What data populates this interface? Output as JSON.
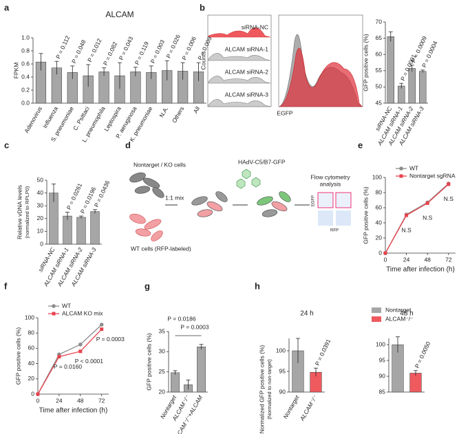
{
  "panels": [
    "a",
    "b",
    "c",
    "d",
    "e",
    "f",
    "g",
    "h"
  ],
  "flow_histogram": {
    "samples": [
      "siRNA-NC",
      "ALCAM siRNA-1",
      "ALCAM siRNA-2",
      "ALCAM siRNA-3"
    ],
    "ylabel": "Counts",
    "xlabel": "EGFP"
  },
  "diagram": {
    "left_top": "Nontarget  / KO cells",
    "left_bottom": "WT cells (RFP-labeled)",
    "mix": "1:1 mix",
    "virus": "HAdV-C5/B7-GFP",
    "analysis": [
      "Flow cytometry",
      "analysis"
    ],
    "plot_y": "EGFP",
    "plot_x": "RFP"
  },
  "chart_data": [
    {
      "type": "bar",
      "title": "ALCAM",
      "ylabel": [
        "FPKM"
      ],
      "categories": [
        "Adenovirus",
        "Influenza",
        "S. pneumoniae",
        "C. Psittaci",
        "L. pneumophila",
        "Leptospira",
        "P. aeruginosa",
        "K. pneumoniae",
        "N.A.",
        "Others",
        "All"
      ],
      "values": [
        0.63,
        0.54,
        0.47,
        0.42,
        0.48,
        0.42,
        0.48,
        0.47,
        0.5,
        0.49,
        0.48
      ],
      "errors": [
        0.13,
        0.1,
        0.1,
        0.17,
        0.06,
        0.2,
        0.07,
        0.1,
        0.15,
        0.13,
        0.14
      ],
      "color": "#a6a6a6",
      "ylim": [
        0,
        1.0
      ],
      "yticks": [
        {
          "value": 0,
          "label": "0.0"
        },
        0.2,
        0.4,
        0.6,
        0.8,
        {
          "value": 1,
          "label": "1.0"
        }
      ],
      "annotations": [
        {
          "text": "P = 0.112",
          "category": 1
        },
        {
          "text": "P = 0.048",
          "category": 2
        },
        {
          "text": "P = 0.012",
          "category": 3
        },
        {
          "text": "P = 0.082",
          "category": 4
        },
        {
          "text": "P = 0.043",
          "category": 5
        },
        {
          "text": "P = 0.119",
          "category": 6
        },
        {
          "text": "P = 0.003",
          "category": 7
        },
        {
          "text": "P = 0.026",
          "category": 8
        },
        {
          "text": "P = 0.006",
          "category": 9
        },
        {
          "text": "P = 0.009",
          "category": 10
        }
      ]
    },
    {
      "type": "bar",
      "ylabel": [
        "GFP positive cells (%)"
      ],
      "categories": [
        "siRNA-NC",
        "ALCAM siRNA-1",
        "ALCAM siRNA-2",
        "ALCAM siRNA-3"
      ],
      "values": [
        65.5,
        50.3,
        55.7,
        54.8
      ],
      "errors": [
        1.5,
        0.8,
        1.0,
        0.4
      ],
      "color": "#a6a6a6",
      "ylim": [
        45,
        70
      ],
      "yticks": [
        45,
        50,
        55,
        60,
        65,
        70
      ],
      "annotations": [
        {
          "text": "P = 0.0001",
          "category": 1
        },
        {
          "text": "P = 0.0009",
          "category": 2
        },
        {
          "text": "P = 0.0004",
          "category": 3
        }
      ]
    },
    {
      "type": "bar",
      "ylabel": [
        "Relative vDNA levels",
        "(normalized to RPLP0)"
      ],
      "categories": [
        "siRNA-NC",
        "ALCAM siRNA-1",
        "ALCAM siRNA-2",
        "ALCAM siRNA-3"
      ],
      "values": [
        40,
        22,
        21,
        25.5
      ],
      "errors": [
        7,
        3,
        1,
        1.5
      ],
      "color": "#a6a6a6",
      "ylim": [
        0,
        50
      ],
      "yticks": [
        0,
        10,
        20,
        30,
        40,
        50
      ],
      "annotations": [
        {
          "text": "P = 0.0261",
          "category": 1
        },
        {
          "text": "P = 0.0196",
          "category": 2
        },
        {
          "text": "P = 0.0436",
          "category": 3
        }
      ]
    },
    {
      "type": "line",
      "ylabel": [
        "GFP positive cells (%)"
      ],
      "xlabel": "Time after infection (h)",
      "x": [
        0,
        24,
        48,
        72
      ],
      "xlim": [
        0,
        80
      ],
      "xticks": [
        0,
        24,
        48,
        72
      ],
      "ylim": [
        0,
        100
      ],
      "yticks": [
        0,
        20,
        40,
        60,
        80,
        100
      ],
      "series": [
        {
          "name": "WT",
          "color": "#8c8c8c",
          "marker": "circle",
          "values": [
            0,
            51,
            67,
            92
          ]
        },
        {
          "name": "Nontarget sgRNA",
          "color": "#e8424d",
          "marker": "square",
          "values": [
            0,
            50,
            66,
            91
          ]
        }
      ],
      "annotations": [
        {
          "text": "N.S",
          "x": 24
        },
        {
          "text": "N.S",
          "x": 48
        },
        {
          "text": "N.S",
          "x": 72
        }
      ]
    },
    {
      "type": "line",
      "ylabel": [
        "GFP positive cells (%)"
      ],
      "xlabel": "Time after infection (h)",
      "x": [
        0,
        24,
        48,
        72
      ],
      "xlim": [
        0,
        80
      ],
      "xticks": [
        0,
        24,
        48,
        72
      ],
      "ylim": [
        0,
        100
      ],
      "yticks": [
        0,
        20,
        40,
        60,
        80,
        100
      ],
      "series": [
        {
          "name": "WT",
          "color": "#8c8c8c",
          "marker": "circle",
          "values": [
            0,
            52,
            65,
            91
          ]
        },
        {
          "name": "ALCAM KO mix",
          "color": "#e8424d",
          "marker": "square",
          "values": [
            0,
            49,
            56,
            85
          ]
        }
      ],
      "annotations": [
        {
          "text": "P = 0.0160",
          "x": 24
        },
        {
          "text": "P < 0.0001",
          "x": 48
        },
        {
          "text": "P = 0.0003",
          "x": 72
        }
      ]
    },
    {
      "type": "bar",
      "ylabel": [
        "GFP positive cells (%)"
      ],
      "categories": [
        "Nontarget",
        "ALCAM⁻/⁻",
        "ALCAM⁻/⁻+ALCAM"
      ],
      "values": [
        24.8,
        21.8,
        31.2
      ],
      "errors": [
        0.5,
        1.2,
        0.6
      ],
      "color": "#a6a6a6",
      "ylim": [
        20,
        35
      ],
      "yticks": [
        20,
        25,
        30,
        35
      ],
      "annotations": [
        {
          "text": "P = 0.0186",
          "between": [
            0,
            1
          ]
        },
        {
          "text": "P = 0.0003",
          "between": [
            1,
            2
          ]
        }
      ]
    },
    {
      "type": "bar",
      "title": "24 h",
      "ylabel": [
        "Normalized GFP positive cells (%)",
        "(Normalized to non-target)"
      ],
      "categories": [
        "Nontarget",
        "ALCAM⁻/⁻"
      ],
      "legend": true,
      "values": [
        100,
        94.8
      ],
      "errors": [
        3,
        1
      ],
      "colors": [
        "#a6a6a6",
        "#ef5a5f"
      ],
      "ylim": [
        90,
        103
      ],
      "yticks": [
        90,
        95,
        100
      ],
      "annotations": [
        {
          "text": "P = 0.0391",
          "category": 1
        }
      ]
    },
    {
      "type": "bar",
      "title": "48 h",
      "values": [
        100,
        91
      ],
      "errors": [
        2.5,
        0.8
      ],
      "colors": [
        "#a6a6a6",
        "#ef5a5f"
      ],
      "ylim": [
        85,
        102
      ],
      "yticks": [
        85,
        90,
        95,
        100
      ],
      "annotations": [
        {
          "text": "P = 0.0050",
          "category": 1
        }
      ]
    }
  ]
}
